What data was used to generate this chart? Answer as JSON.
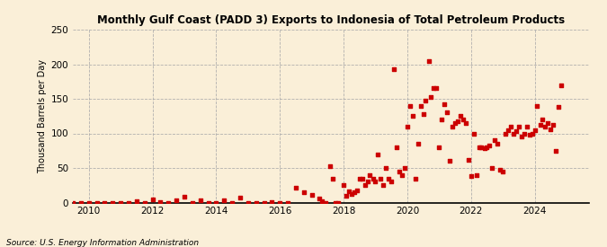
{
  "title": "Monthly Gulf Coast (PADD 3) Exports to Indonesia of Total Petroleum Products",
  "ylabel": "Thousand Barrels per Day",
  "source": "Source: U.S. Energy Information Administration",
  "background_color": "#faefd8",
  "marker_color": "#cc0000",
  "xlim": [
    2009.5,
    2025.7
  ],
  "ylim": [
    0,
    250
  ],
  "yticks": [
    0,
    50,
    100,
    150,
    200,
    250
  ],
  "xticks": [
    2010,
    2012,
    2014,
    2016,
    2018,
    2020,
    2022,
    2024
  ],
  "data": [
    [
      2009.25,
      0
    ],
    [
      2009.5,
      0
    ],
    [
      2009.75,
      0
    ],
    [
      2010.0,
      0
    ],
    [
      2010.25,
      0
    ],
    [
      2010.5,
      0
    ],
    [
      2010.75,
      0
    ],
    [
      2011.0,
      0
    ],
    [
      2011.25,
      0
    ],
    [
      2011.5,
      2
    ],
    [
      2011.75,
      0
    ],
    [
      2012.0,
      5
    ],
    [
      2012.25,
      1
    ],
    [
      2012.5,
      0
    ],
    [
      2012.75,
      3
    ],
    [
      2013.0,
      8
    ],
    [
      2013.25,
      0
    ],
    [
      2013.5,
      3
    ],
    [
      2013.75,
      0
    ],
    [
      2014.0,
      0
    ],
    [
      2014.25,
      3
    ],
    [
      2014.5,
      0
    ],
    [
      2014.75,
      7
    ],
    [
      2015.0,
      0
    ],
    [
      2015.25,
      0
    ],
    [
      2015.5,
      0
    ],
    [
      2015.75,
      1
    ],
    [
      2016.0,
      0
    ],
    [
      2016.25,
      0
    ],
    [
      2016.5,
      22
    ],
    [
      2016.75,
      15
    ],
    [
      2017.0,
      11
    ],
    [
      2017.25,
      6
    ],
    [
      2017.33,
      2
    ],
    [
      2017.42,
      0
    ],
    [
      2017.58,
      52
    ],
    [
      2017.67,
      35
    ],
    [
      2017.75,
      0
    ],
    [
      2017.83,
      0
    ],
    [
      2018.0,
      25
    ],
    [
      2018.08,
      10
    ],
    [
      2018.17,
      16
    ],
    [
      2018.25,
      12
    ],
    [
      2018.33,
      15
    ],
    [
      2018.42,
      18
    ],
    [
      2018.5,
      35
    ],
    [
      2018.58,
      35
    ],
    [
      2018.67,
      25
    ],
    [
      2018.75,
      30
    ],
    [
      2018.83,
      40
    ],
    [
      2018.92,
      35
    ],
    [
      2019.0,
      30
    ],
    [
      2019.08,
      70
    ],
    [
      2019.17,
      35
    ],
    [
      2019.25,
      25
    ],
    [
      2019.33,
      50
    ],
    [
      2019.42,
      35
    ],
    [
      2019.5,
      30
    ],
    [
      2019.58,
      193
    ],
    [
      2019.67,
      80
    ],
    [
      2019.75,
      45
    ],
    [
      2019.83,
      40
    ],
    [
      2019.92,
      50
    ],
    [
      2020.0,
      110
    ],
    [
      2020.08,
      140
    ],
    [
      2020.17,
      125
    ],
    [
      2020.25,
      35
    ],
    [
      2020.33,
      85
    ],
    [
      2020.42,
      140
    ],
    [
      2020.5,
      128
    ],
    [
      2020.58,
      148
    ],
    [
      2020.67,
      205
    ],
    [
      2020.75,
      152
    ],
    [
      2020.83,
      165
    ],
    [
      2020.92,
      165
    ],
    [
      2021.0,
      80
    ],
    [
      2021.08,
      120
    ],
    [
      2021.17,
      142
    ],
    [
      2021.25,
      130
    ],
    [
      2021.33,
      60
    ],
    [
      2021.42,
      110
    ],
    [
      2021.5,
      115
    ],
    [
      2021.58,
      118
    ],
    [
      2021.67,
      125
    ],
    [
      2021.75,
      120
    ],
    [
      2021.83,
      115
    ],
    [
      2021.92,
      62
    ],
    [
      2022.0,
      38
    ],
    [
      2022.08,
      100
    ],
    [
      2022.17,
      40
    ],
    [
      2022.25,
      80
    ],
    [
      2022.33,
      80
    ],
    [
      2022.42,
      78
    ],
    [
      2022.5,
      80
    ],
    [
      2022.58,
      82
    ],
    [
      2022.67,
      50
    ],
    [
      2022.75,
      90
    ],
    [
      2022.83,
      85
    ],
    [
      2022.92,
      48
    ],
    [
      2023.0,
      45
    ],
    [
      2023.08,
      100
    ],
    [
      2023.17,
      105
    ],
    [
      2023.25,
      110
    ],
    [
      2023.33,
      100
    ],
    [
      2023.42,
      103
    ],
    [
      2023.5,
      110
    ],
    [
      2023.58,
      95
    ],
    [
      2023.67,
      100
    ],
    [
      2023.75,
      110
    ],
    [
      2023.83,
      98
    ],
    [
      2023.92,
      100
    ],
    [
      2024.0,
      105
    ],
    [
      2024.08,
      140
    ],
    [
      2024.17,
      112
    ],
    [
      2024.25,
      120
    ],
    [
      2024.33,
      110
    ],
    [
      2024.42,
      115
    ],
    [
      2024.5,
      106
    ],
    [
      2024.58,
      112
    ],
    [
      2024.67,
      75
    ],
    [
      2024.75,
      138
    ],
    [
      2024.83,
      170
    ]
  ]
}
